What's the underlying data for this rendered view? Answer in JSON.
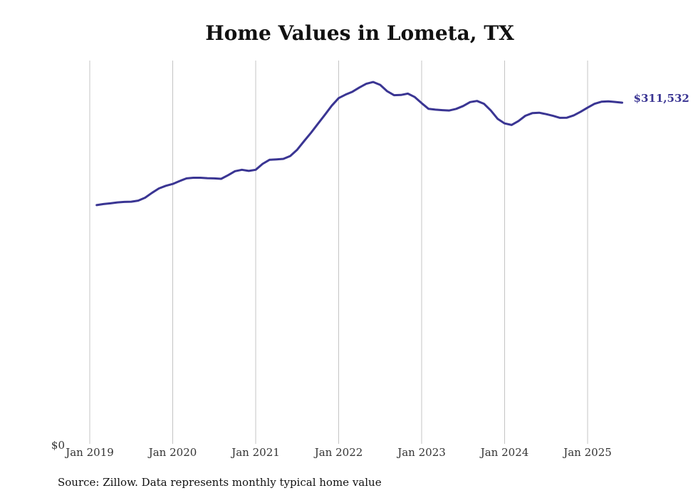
{
  "chart_data": {
    "type": "line",
    "title": "Home Values in Lometa, TX",
    "xlabel": "",
    "ylabel": "",
    "y_axis_label_min": "$0",
    "ylim": [
      0,
      350000
    ],
    "x_tick_labels": [
      "Jan 2019",
      "Jan 2020",
      "Jan 2021",
      "Jan 2022",
      "Jan 2023",
      "Jan 2024",
      "Jan 2025"
    ],
    "grid": "vertical",
    "line_color": "#3a3593",
    "end_label": "$311,532",
    "series": [
      {
        "points": [
          [
            "2019-02",
            218000
          ],
          [
            "2019-03",
            219000
          ],
          [
            "2019-04",
            219600
          ],
          [
            "2019-05",
            220500
          ],
          [
            "2019-06",
            220900
          ],
          [
            "2019-07",
            221100
          ],
          [
            "2019-08",
            222100
          ],
          [
            "2019-09",
            224800
          ],
          [
            "2019-10",
            229200
          ],
          [
            "2019-11",
            233200
          ],
          [
            "2019-12",
            235600
          ],
          [
            "2020-01",
            237300
          ],
          [
            "2020-02",
            240000
          ],
          [
            "2020-03",
            242400
          ],
          [
            "2020-04",
            243000
          ],
          [
            "2020-05",
            243000
          ],
          [
            "2020-06",
            242600
          ],
          [
            "2020-07",
            242400
          ],
          [
            "2020-08",
            242000
          ],
          [
            "2020-09",
            245300
          ],
          [
            "2020-10",
            249000
          ],
          [
            "2020-11",
            250300
          ],
          [
            "2020-12",
            249200
          ],
          [
            "2021-01",
            250300
          ],
          [
            "2021-02",
            255700
          ],
          [
            "2021-03",
            259400
          ],
          [
            "2021-04",
            259800
          ],
          [
            "2021-05",
            260200
          ],
          [
            "2021-06",
            262800
          ],
          [
            "2021-07",
            268600
          ],
          [
            "2021-08",
            276500
          ],
          [
            "2021-09",
            284100
          ],
          [
            "2021-10",
            292300
          ],
          [
            "2021-11",
            300400
          ],
          [
            "2021-12",
            308800
          ],
          [
            "2022-01",
            315700
          ],
          [
            "2022-02",
            318900
          ],
          [
            "2022-03",
            321600
          ],
          [
            "2022-04",
            325400
          ],
          [
            "2022-05",
            328800
          ],
          [
            "2022-06",
            330400
          ],
          [
            "2022-07",
            327800
          ],
          [
            "2022-08",
            322000
          ],
          [
            "2022-09",
            318400
          ],
          [
            "2022-10",
            318600
          ],
          [
            "2022-11",
            319800
          ],
          [
            "2022-12",
            316700
          ],
          [
            "2023-01",
            311100
          ],
          [
            "2023-02",
            305900
          ],
          [
            "2023-03",
            305200
          ],
          [
            "2023-04",
            304700
          ],
          [
            "2023-05",
            304400
          ],
          [
            "2023-06",
            305900
          ],
          [
            "2023-07",
            308500
          ],
          [
            "2023-08",
            312100
          ],
          [
            "2023-09",
            313100
          ],
          [
            "2023-10",
            310600
          ],
          [
            "2023-11",
            304400
          ],
          [
            "2023-12",
            296700
          ],
          [
            "2024-01",
            292600
          ],
          [
            "2024-02",
            291200
          ],
          [
            "2024-03",
            294800
          ],
          [
            "2024-04",
            299600
          ],
          [
            "2024-05",
            302000
          ],
          [
            "2024-06",
            302400
          ],
          [
            "2024-07",
            301100
          ],
          [
            "2024-08",
            299500
          ],
          [
            "2024-09",
            297700
          ],
          [
            "2024-10",
            297800
          ],
          [
            "2024-11",
            300000
          ],
          [
            "2024-12",
            303300
          ],
          [
            "2025-01",
            307000
          ],
          [
            "2025-02",
            310500
          ],
          [
            "2025-03",
            312400
          ],
          [
            "2025-04",
            312700
          ],
          [
            "2025-05",
            312200
          ],
          [
            "2025-06",
            311532
          ]
        ]
      }
    ]
  },
  "source_note": "Source: Zillow. Data represents monthly typical home value"
}
